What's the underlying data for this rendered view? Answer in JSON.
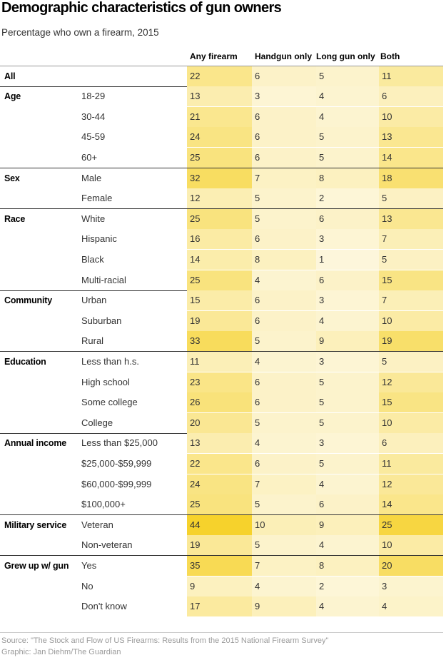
{
  "chart_data": {
    "type": "table",
    "title": "Demographic characteristics of gun owners",
    "subtitle": "Percentage who own a firearm, 2015",
    "columns": [
      "Any firearm",
      "Handgun only",
      "Long gun only",
      "Both"
    ],
    "groups": [
      {
        "category": "All",
        "rows": [
          {
            "label": "",
            "values": [
              22,
              6,
              5,
              11
            ]
          }
        ]
      },
      {
        "category": "Age",
        "rows": [
          {
            "label": "18-29",
            "values": [
              13,
              3,
              4,
              6
            ]
          },
          {
            "label": "30-44",
            "values": [
              21,
              6,
              4,
              10
            ]
          },
          {
            "label": "45-59",
            "values": [
              24,
              6,
              5,
              13
            ]
          },
          {
            "label": "60+",
            "values": [
              25,
              6,
              5,
              14
            ]
          }
        ]
      },
      {
        "category": "Sex",
        "rows": [
          {
            "label": "Male",
            "values": [
              32,
              7,
              8,
              18
            ]
          },
          {
            "label": "Female",
            "values": [
              12,
              5,
              2,
              5
            ]
          }
        ]
      },
      {
        "category": "Race",
        "rows": [
          {
            "label": "White",
            "values": [
              25,
              5,
              6,
              13
            ]
          },
          {
            "label": "Hispanic",
            "values": [
              16,
              6,
              3,
              7
            ]
          },
          {
            "label": "Black",
            "values": [
              14,
              8,
              1,
              5
            ]
          },
          {
            "label": "Multi-racial",
            "values": [
              25,
              4,
              6,
              15
            ]
          }
        ]
      },
      {
        "category": "Community",
        "rows": [
          {
            "label": "Urban",
            "values": [
              15,
              6,
              3,
              7
            ]
          },
          {
            "label": "Suburban",
            "values": [
              19,
              6,
              4,
              10
            ]
          },
          {
            "label": "Rural",
            "values": [
              33,
              5,
              9,
              19
            ]
          }
        ]
      },
      {
        "category": "Education",
        "rows": [
          {
            "label": "Less than h.s.",
            "values": [
              11,
              4,
              3,
              5
            ]
          },
          {
            "label": "High school",
            "values": [
              23,
              6,
              5,
              12
            ]
          },
          {
            "label": "Some college",
            "values": [
              26,
              6,
              5,
              15
            ]
          },
          {
            "label": "College",
            "values": [
              20,
              5,
              5,
              10
            ]
          }
        ]
      },
      {
        "category": "Annual income",
        "rows": [
          {
            "label": "Less than $25,000",
            "values": [
              13,
              4,
              3,
              6
            ]
          },
          {
            "label": "$25,000-$59,999",
            "values": [
              22,
              6,
              5,
              11
            ]
          },
          {
            "label": "$60,000-$99,999",
            "values": [
              24,
              7,
              4,
              12
            ]
          },
          {
            "label": "$100,000+",
            "values": [
              25,
              5,
              6,
              14
            ]
          }
        ]
      },
      {
        "category": "Military service",
        "rows": [
          {
            "label": "Veteran",
            "values": [
              44,
              10,
              9,
              25
            ]
          },
          {
            "label": "Non-veteran",
            "values": [
              19,
              5,
              4,
              10
            ]
          }
        ]
      },
      {
        "category": "Grew up w/ gun",
        "rows": [
          {
            "label": "Yes",
            "values": [
              35,
              7,
              8,
              20
            ]
          },
          {
            "label": "No",
            "values": [
              9,
              4,
              2,
              3
            ]
          },
          {
            "label": "Don't know",
            "values": [
              17,
              9,
              4,
              4
            ]
          }
        ]
      }
    ],
    "color_scale": {
      "low": "#fdf7de",
      "high": "#f6d22c",
      "max_value": 44
    }
  },
  "footer": {
    "source": "Source: \"The Stock and Flow of US Firearms: Results from the 2015 National Firearm Survey\"",
    "credit": "Graphic: Jan Diehm/The Guardian"
  }
}
